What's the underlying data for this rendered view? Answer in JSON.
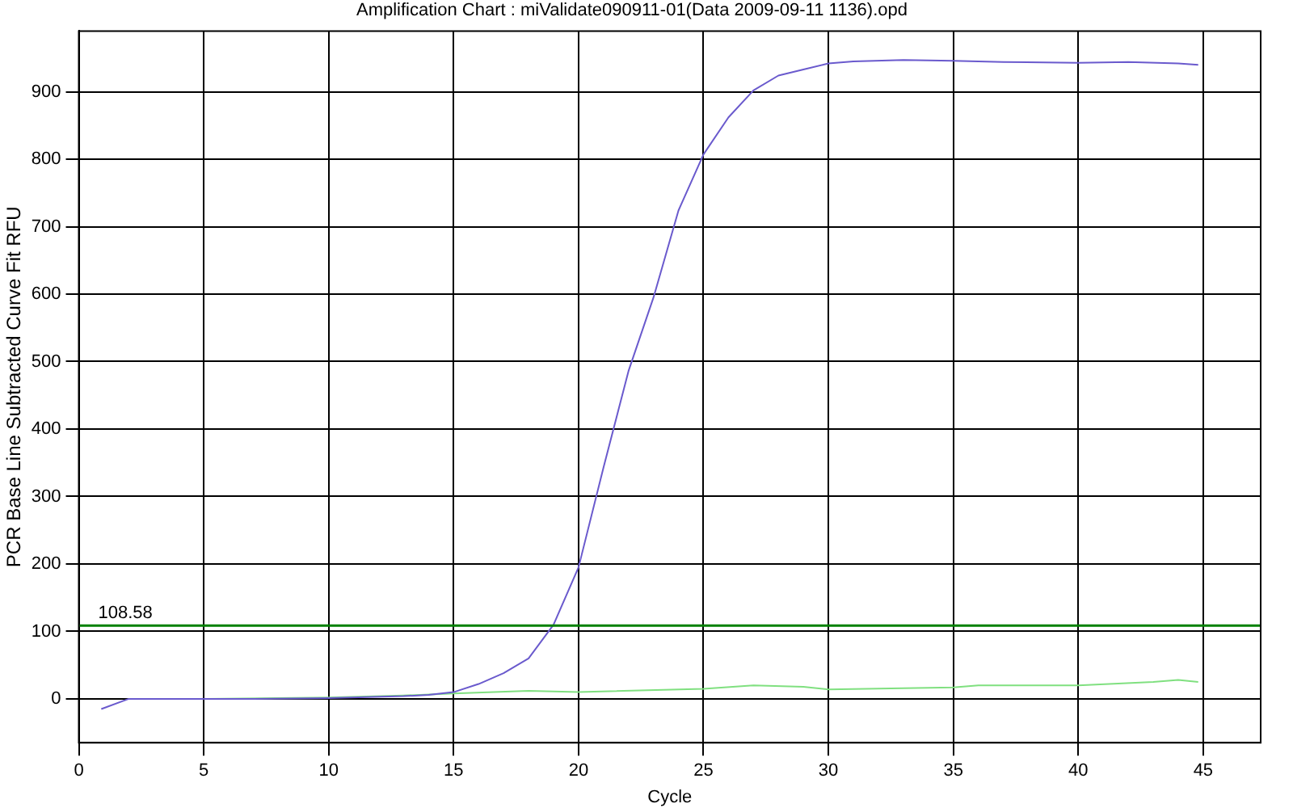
{
  "chart_data": {
    "type": "line",
    "title": "Amplification Chart : miValidate090911-01(Data 2009-09-11 1136).opd",
    "xlabel": "Cycle",
    "ylabel": "PCR Base Line Subtracted Curve Fit RFU",
    "xlim": [
      0,
      47.3
    ],
    "xticks": [
      0,
      5,
      10,
      15,
      20,
      25,
      30,
      35,
      40,
      45
    ],
    "ylim": [
      -65,
      990
    ],
    "yticks": [
      0,
      100,
      200,
      300,
      400,
      500,
      600,
      700,
      800,
      900
    ],
    "grid": true,
    "legend": false,
    "marker": "none",
    "ref_lines": [
      {
        "axis": "y",
        "value": 108.58,
        "label": "108.58",
        "color": "#008000"
      }
    ],
    "series": [
      {
        "color": "#6a5acd",
        "x": [
          0.9,
          2,
          3,
          5,
          7,
          10,
          13,
          14,
          15,
          16,
          17,
          18,
          19,
          20,
          21,
          22,
          23,
          24,
          25,
          26,
          27,
          28,
          29,
          30,
          31,
          33,
          35,
          37,
          40,
          42,
          44,
          44.8
        ],
        "values": [
          -15,
          0,
          0,
          0,
          0,
          1,
          4,
          6,
          10,
          22,
          38,
          60,
          110,
          195,
          343,
          486,
          595,
          724,
          807,
          862,
          902,
          924,
          933,
          942,
          945,
          947,
          946,
          944,
          943,
          944,
          942,
          940
        ]
      },
      {
        "color": "#80e080",
        "x": [
          2,
          5,
          10,
          13,
          15,
          18,
          20,
          25,
          27,
          29,
          30,
          35,
          36,
          40,
          43,
          44,
          44.8
        ],
        "values": [
          0,
          0,
          2,
          5,
          8,
          12,
          10,
          15,
          20,
          18,
          14,
          17,
          20,
          20,
          25,
          28,
          25
        ]
      }
    ]
  }
}
